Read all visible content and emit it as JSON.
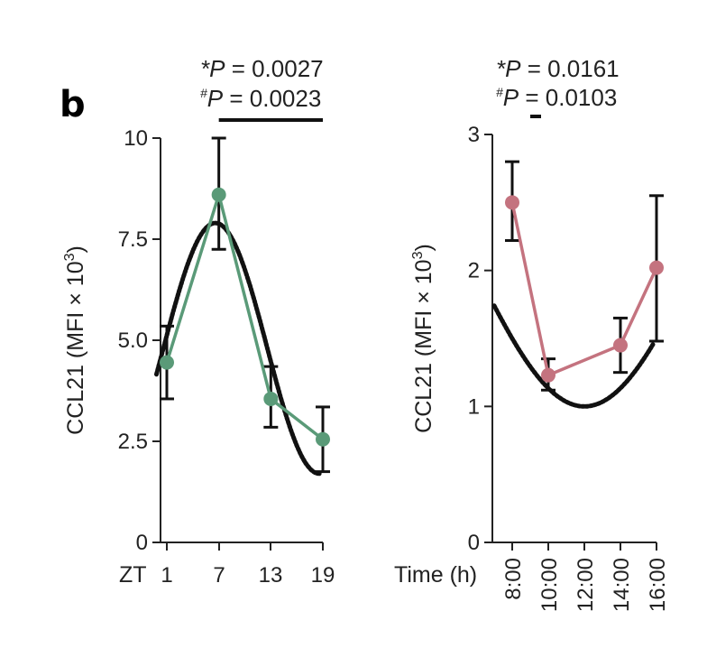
{
  "panel_letter": "b",
  "chart_data": [
    {
      "type": "line",
      "title": "",
      "xlabel": "ZT",
      "ylabel": "CCL21 (MFI × 10³)",
      "ylabel_parts": {
        "main": "CCL21 (MFI × 10",
        "sup": "3",
        "close": ")"
      },
      "ylim": [
        0,
        10
      ],
      "yticks": [
        0,
        2.5,
        5.0,
        7.5,
        10
      ],
      "ytick_labels": [
        "0",
        "2.5",
        "5.0",
        "7.5",
        "10"
      ],
      "x": [
        1,
        7,
        13,
        19
      ],
      "xtick_labels": [
        "1",
        "7",
        "13",
        "19"
      ],
      "xlim": [
        0,
        19
      ],
      "series": [
        {
          "name": "CCL21",
          "color": "#5a9a78",
          "values": [
            4.45,
            8.6,
            3.55,
            2.55
          ],
          "err_upper": [
            5.35,
            10.0,
            4.35,
            3.35
          ],
          "err_lower": [
            3.55,
            7.25,
            2.85,
            1.75
          ]
        }
      ],
      "fit": {
        "name": "cosinor fit",
        "color": "#111111",
        "mesor": 4.8,
        "amplitude": 3.1,
        "peak_x": 6.6,
        "period": 24,
        "x_range": [
          -0.2,
          18.6
        ]
      },
      "annotations": [
        {
          "symbol": "*",
          "sym_text": "P",
          "value_text": "= 0.0027"
        },
        {
          "symbol": "#",
          "sym_text": "P",
          "value_text": "= 0.0023"
        }
      ],
      "significance_bar": {
        "from": 7,
        "to": 19
      }
    },
    {
      "type": "line",
      "title": "",
      "xlabel": "Time (h)",
      "ylabel": "CCL21 (MFI × 10³)",
      "ylabel_parts": {
        "main": "CCL21 (MFI × 10",
        "sup": "3",
        "close": ")"
      },
      "ylim": [
        0,
        3
      ],
      "yticks": [
        0,
        1,
        2,
        3
      ],
      "ytick_labels": [
        "0",
        "1",
        "2",
        "3"
      ],
      "x": [
        8,
        10,
        14,
        16
      ],
      "xtick_values": [
        8,
        10,
        12,
        14,
        16
      ],
      "xtick_labels": [
        "8:00",
        "10:00",
        "12:00",
        "14:00",
        "16:00"
      ],
      "xlim": [
        7.0,
        16.0
      ],
      "series": [
        {
          "name": "CCL21",
          "color": "#c4737f",
          "values": [
            2.5,
            1.23,
            1.45,
            2.02
          ],
          "err_upper": [
            2.8,
            1.35,
            1.65,
            2.55
          ],
          "err_lower": [
            2.22,
            1.12,
            1.25,
            1.48
          ]
        }
      ],
      "fit": {
        "name": "cosinor fit",
        "color": "#111111",
        "mesor": 2.0,
        "amplitude": 1.0,
        "peak_x": 0.0,
        "period": 24,
        "x_range": [
          7.0,
          15.8
        ]
      },
      "annotations": [
        {
          "symbol": "*",
          "sym_text": "P",
          "value_text": "= 0.0161"
        },
        {
          "symbol": "#",
          "sym_text": "P",
          "value_text": "= 0.0103"
        }
      ],
      "significance_bar": {
        "from": 9.0,
        "to": 9.6
      }
    }
  ]
}
